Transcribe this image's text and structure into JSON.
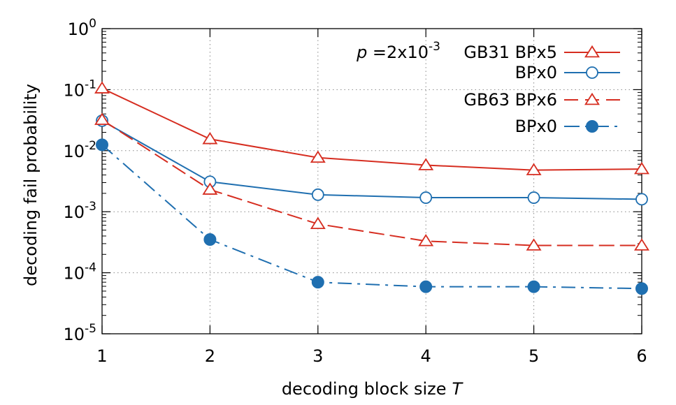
{
  "chart_data": {
    "type": "line",
    "title": "",
    "xlabel": "decoding block size",
    "xlabel_var": "T",
    "ylabel": "decoding fail probability",
    "x": [
      1,
      2,
      3,
      4,
      5,
      6
    ],
    "xlim": [
      1,
      6
    ],
    "ylim": [
      1e-05,
      1
    ],
    "yscale": "log",
    "grid": true,
    "legend_position": "top-right",
    "x_ticks": [
      "1",
      "2",
      "3",
      "4",
      "5",
      "6"
    ],
    "y_ticks": [
      {
        "base": "10",
        "exp": "0"
      },
      {
        "base": "10",
        "exp": "-1"
      },
      {
        "base": "10",
        "exp": "-2"
      },
      {
        "base": "10",
        "exp": "-3"
      },
      {
        "base": "10",
        "exp": "-4"
      },
      {
        "base": "10",
        "exp": "-5"
      }
    ],
    "legend_header": {
      "p_symbol": "p",
      "eq": " =2x10",
      "exp": "-3"
    },
    "series": [
      {
        "name": "GB31 BPx5",
        "color": "#d62d20",
        "marker": "triangle-open",
        "dash": "solid",
        "values": [
          0.105,
          0.0155,
          0.0077,
          0.0058,
          0.0048,
          0.005
        ]
      },
      {
        "name": "BPx0",
        "color": "#1f6fb0",
        "marker": "circle-open",
        "dash": "solid",
        "values": [
          0.031,
          0.0031,
          0.0019,
          0.0017,
          0.0017,
          0.0016
        ]
      },
      {
        "name": "GB63 BPx6",
        "color": "#d62d20",
        "marker": "triangle-open",
        "dash": "dashed",
        "values": [
          0.032,
          0.0023,
          0.00063,
          0.00033,
          0.00028,
          0.00028
        ]
      },
      {
        "name": "BPx0",
        "color": "#1f6fb0",
        "marker": "circle-filled",
        "dash": "dashdot",
        "values": [
          0.0125,
          0.00035,
          7e-05,
          5.9e-05,
          5.9e-05,
          5.5e-05
        ]
      }
    ]
  }
}
